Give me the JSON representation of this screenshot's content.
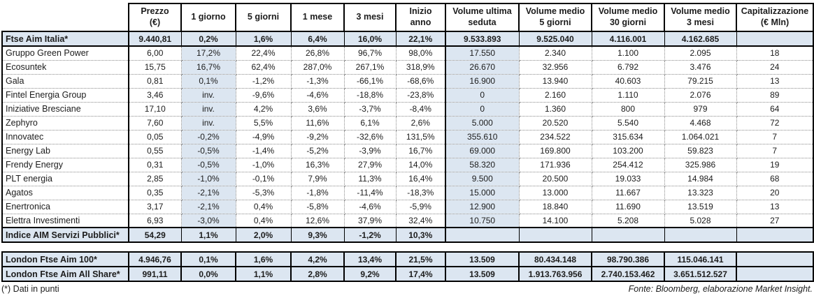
{
  "main_table": {
    "columns": [
      {
        "line1": "Prezzo",
        "line2": "(€)"
      },
      {
        "line1": "1 giorno",
        "line2": ""
      },
      {
        "line1": "5 giorni",
        "line2": ""
      },
      {
        "line1": "1 mese",
        "line2": ""
      },
      {
        "line1": "3 mesi",
        "line2": ""
      },
      {
        "line1": "Inizio anno",
        "line2": ""
      },
      {
        "line1": "Volume ultima",
        "line2": "seduta"
      },
      {
        "line1": "Volume medio",
        "line2": "5 giorni"
      },
      {
        "line1": "Volume medio",
        "line2": "30 giorni"
      },
      {
        "line1": "Volume medio",
        "line2": "3 mesi"
      },
      {
        "line1": "Capitalizzazione",
        "line2": "(€ Mln)"
      }
    ],
    "rows": [
      {
        "name": "Ftse Aim Italia*",
        "highlight": true,
        "values": [
          "9.440,81",
          "0,2%",
          "1,6%",
          "6,4%",
          "16,0%",
          "22,1%",
          "9.533.893",
          "9.525.040",
          "4.116.001",
          "4.162.685",
          ""
        ]
      },
      {
        "name": "Gruppo Green Power",
        "highlight": false,
        "values": [
          "6,00",
          "17,2%",
          "22,4%",
          "26,8%",
          "96,7%",
          "98,0%",
          "17.550",
          "2.340",
          "1.100",
          "2.095",
          "18"
        ]
      },
      {
        "name": "Ecosuntek",
        "highlight": false,
        "values": [
          "15,75",
          "16,7%",
          "62,4%",
          "287,0%",
          "267,1%",
          "318,9%",
          "26.670",
          "32.956",
          "6.792",
          "3.476",
          "24"
        ]
      },
      {
        "name": "Gala",
        "highlight": false,
        "values": [
          "0,81",
          "0,1%",
          "-1,2%",
          "-1,3%",
          "-66,1%",
          "-68,6%",
          "16.900",
          "13.940",
          "40.603",
          "79.215",
          "13"
        ]
      },
      {
        "name": "Fintel Energia Group",
        "highlight": false,
        "values": [
          "3,46",
          "inv.",
          "-9,6%",
          "-4,6%",
          "-18,8%",
          "-23,8%",
          "0",
          "2.160",
          "1.110",
          "2.076",
          "89"
        ]
      },
      {
        "name": "Iniziative Bresciane",
        "highlight": false,
        "values": [
          "17,10",
          "inv.",
          "4,2%",
          "3,6%",
          "-3,7%",
          "-8,4%",
          "0",
          "1.360",
          "800",
          "979",
          "64"
        ]
      },
      {
        "name": "Zephyro",
        "highlight": false,
        "values": [
          "7,60",
          "inv.",
          "5,5%",
          "11,6%",
          "6,1%",
          "2,6%",
          "5.000",
          "20.520",
          "5.540",
          "4.468",
          "72"
        ]
      },
      {
        "name": "Innovatec",
        "highlight": false,
        "values": [
          "0,05",
          "-0,2%",
          "-4,9%",
          "-9,2%",
          "-32,6%",
          "131,5%",
          "355.610",
          "234.522",
          "315.634",
          "1.064.021",
          "7"
        ]
      },
      {
        "name": "Energy Lab",
        "highlight": false,
        "values": [
          "0,55",
          "-0,5%",
          "-1,4%",
          "-5,2%",
          "-3,9%",
          "16,7%",
          "69.000",
          "169.800",
          "103.200",
          "59.823",
          "7"
        ]
      },
      {
        "name": "Frendy Energy",
        "highlight": false,
        "values": [
          "0,31",
          "-0,5%",
          "-1,0%",
          "16,3%",
          "27,9%",
          "14,0%",
          "58.320",
          "171.936",
          "254.412",
          "325.986",
          "19"
        ]
      },
      {
        "name": "PLT energia",
        "highlight": false,
        "values": [
          "2,85",
          "-1,0%",
          "-0,1%",
          "7,9%",
          "11,3%",
          "16,4%",
          "9.500",
          "20.500",
          "19.033",
          "14.984",
          "68"
        ]
      },
      {
        "name": "Agatos",
        "highlight": false,
        "values": [
          "0,35",
          "-2,1%",
          "-5,3%",
          "-1,8%",
          "-11,4%",
          "-18,3%",
          "15.000",
          "13.000",
          "11.667",
          "13.323",
          "20"
        ]
      },
      {
        "name": "Enertronica",
        "highlight": false,
        "values": [
          "3,17",
          "-2,1%",
          "0,4%",
          "-5,8%",
          "-4,6%",
          "-5,9%",
          "12.900",
          "18.840",
          "11.690",
          "13.519",
          "13"
        ]
      },
      {
        "name": "Elettra Investimenti",
        "highlight": false,
        "values": [
          "6,93",
          "-3,0%",
          "0,4%",
          "12,6%",
          "37,9%",
          "32,4%",
          "10.750",
          "14.100",
          "5.208",
          "5.028",
          "27"
        ]
      },
      {
        "name": "Indice AIM Servizi Pubblici*",
        "highlight": true,
        "values": [
          "54,29",
          "1,1%",
          "2,0%",
          "9,3%",
          "-1,2%",
          "10,3%",
          "",
          "",
          "",
          "",
          ""
        ]
      }
    ]
  },
  "london_table": {
    "rows": [
      {
        "name": "London Ftse Aim 100*",
        "highlight": true,
        "values": [
          "4.946,76",
          "0,1%",
          "1,6%",
          "4,2%",
          "13,4%",
          "21,5%",
          "13.509",
          "80.434.148",
          "98.790.386",
          "115.046.141",
          ""
        ]
      },
      {
        "name": "London Ftse Aim All Share*",
        "highlight": true,
        "values": [
          "991,11",
          "0,0%",
          "1,1%",
          "2,8%",
          "9,2%",
          "17,4%",
          "13.509",
          "1.913.763.956",
          "2.740.153.462",
          "3.651.512.527",
          ""
        ]
      }
    ]
  },
  "footer": {
    "note": "(*) Dati in punti",
    "source": "Fonte: Bloomberg, elaborazione Market Insight."
  },
  "colors": {
    "highlight_blue": "#dce6f1",
    "border_black": "#000000",
    "dotted_gray": "#8a8a8a"
  }
}
